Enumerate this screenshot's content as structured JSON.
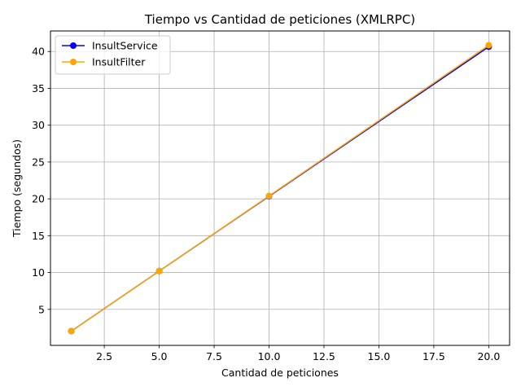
{
  "chart_data": {
    "type": "line",
    "title": "Tiempo vs Cantidad de peticiones (XMLRPC)",
    "xlabel": "Cantidad de peticiones",
    "ylabel": "Tiempo (segundos)",
    "x": [
      1,
      5,
      10,
      20
    ],
    "series": [
      {
        "name": "InsultService",
        "values": [
          2.05,
          10.2,
          20.35,
          40.65
        ],
        "color": "#0000ff"
      },
      {
        "name": "InsultFilter",
        "values": [
          2.05,
          10.2,
          20.4,
          40.85
        ],
        "color": "#ffa500"
      }
    ],
    "xlim": [
      0.05,
      20.95
    ],
    "ylim": [
      0.11,
      42.79
    ],
    "xticks": [
      2.5,
      5.0,
      7.5,
      10.0,
      12.5,
      15.0,
      17.5,
      20.0
    ],
    "xtick_labels": [
      "2.5",
      "5.0",
      "7.5",
      "10.0",
      "12.5",
      "15.0",
      "17.5",
      "20.0"
    ],
    "yticks": [
      5,
      10,
      15,
      20,
      25,
      30,
      35,
      40
    ],
    "ytick_labels": [
      "5",
      "10",
      "15",
      "20",
      "25",
      "30",
      "35",
      "40"
    ],
    "grid": true,
    "legend": "upper-left"
  }
}
